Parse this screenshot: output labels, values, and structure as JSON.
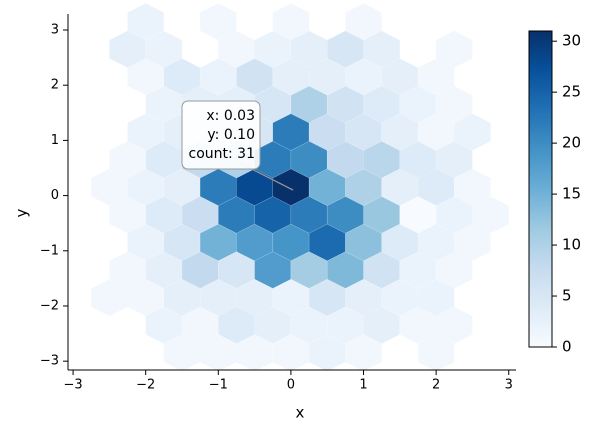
{
  "chart_data": {
    "type": "hexbin",
    "xlabel": "x",
    "ylabel": "y",
    "xlim": [
      -3.07,
      3.1
    ],
    "ylim": [
      -3.16,
      3.29
    ],
    "xticks": [
      {
        "value": -3,
        "label": "−3"
      },
      {
        "value": -2,
        "label": "−2"
      },
      {
        "value": -1,
        "label": "−1"
      },
      0,
      1,
      2,
      3
    ],
    "yticks": [
      {
        "value": -3,
        "label": "−3"
      },
      {
        "value": -2,
        "label": "−2"
      },
      {
        "value": -1,
        "label": "−1"
      },
      0,
      1,
      2,
      3
    ],
    "colormap": [
      "#f7fbff",
      "#deebf7",
      "#c6dbef",
      "#9ecae1",
      "#6baed6",
      "#4292c6",
      "#2171b5",
      "#08519c",
      "#08306b"
    ],
    "clim": [
      0,
      31
    ],
    "cticks": [
      0,
      5,
      10,
      15,
      20,
      25,
      30
    ],
    "hexes": [
      [
        -2,
        3.15,
        2
      ],
      [
        -1,
        3.15,
        1
      ],
      [
        0,
        3.15,
        1
      ],
      [
        1,
        3.15,
        1
      ],
      [
        -2.25,
        2.65,
        3
      ],
      [
        -1.75,
        2.65,
        2
      ],
      [
        -0.75,
        2.65,
        1
      ],
      [
        -0.25,
        2.65,
        2
      ],
      [
        0.25,
        2.65,
        3
      ],
      [
        0.75,
        2.65,
        5
      ],
      [
        1.25,
        2.65,
        3
      ],
      [
        2.25,
        2.65,
        1
      ],
      [
        -2,
        2.15,
        1
      ],
      [
        -1.5,
        2.15,
        4
      ],
      [
        -1,
        2.15,
        2
      ],
      [
        -0.5,
        2.15,
        6
      ],
      [
        0,
        2.15,
        3
      ],
      [
        0.5,
        2.15,
        3
      ],
      [
        1,
        2.15,
        2
      ],
      [
        1.5,
        2.15,
        3
      ],
      [
        2,
        2.15,
        1
      ],
      [
        -1.75,
        1.65,
        2
      ],
      [
        -1.25,
        1.65,
        3
      ],
      [
        -0.75,
        1.65,
        3
      ],
      [
        -0.25,
        1.65,
        5
      ],
      [
        0.25,
        1.65,
        10
      ],
      [
        0.75,
        1.65,
        6
      ],
      [
        1.25,
        1.65,
        4
      ],
      [
        1.75,
        1.65,
        2
      ],
      [
        2.25,
        1.65,
        1
      ],
      [
        -2,
        1.15,
        2
      ],
      [
        -1.5,
        1.15,
        3
      ],
      [
        -1,
        1.15,
        5
      ],
      [
        -0.5,
        1.15,
        5
      ],
      [
        0,
        1.15,
        22
      ],
      [
        0.5,
        1.15,
        7
      ],
      [
        1,
        1.15,
        5
      ],
      [
        1.5,
        1.15,
        3
      ],
      [
        2,
        1.15,
        1
      ],
      [
        2.5,
        1.15,
        2
      ],
      [
        -2.25,
        0.65,
        1
      ],
      [
        -1.75,
        0.65,
        4
      ],
      [
        -1.25,
        0.65,
        8
      ],
      [
        -0.75,
        0.65,
        10
      ],
      [
        -0.25,
        0.65,
        22
      ],
      [
        0.25,
        0.65,
        20
      ],
      [
        0.75,
        0.65,
        8
      ],
      [
        1.25,
        0.65,
        9
      ],
      [
        1.75,
        0.65,
        4
      ],
      [
        2.25,
        0.65,
        3
      ],
      [
        -2.5,
        0.15,
        1
      ],
      [
        -2,
        0.15,
        2
      ],
      [
        -1.5,
        0.15,
        3
      ],
      [
        -1,
        0.15,
        22
      ],
      [
        -0.5,
        0.15,
        28
      ],
      [
        0,
        0.15,
        31
      ],
      [
        0.5,
        0.15,
        15
      ],
      [
        1,
        0.15,
        10
      ],
      [
        1.5,
        0.15,
        3
      ],
      [
        2,
        0.15,
        4
      ],
      [
        2.5,
        0.15,
        1
      ],
      [
        -2.25,
        -0.35,
        1
      ],
      [
        -1.75,
        -0.35,
        4
      ],
      [
        -1.25,
        -0.35,
        7
      ],
      [
        -0.75,
        -0.35,
        22
      ],
      [
        -0.25,
        -0.35,
        25
      ],
      [
        0.25,
        -0.35,
        22
      ],
      [
        0.75,
        -0.35,
        20
      ],
      [
        1.25,
        -0.35,
        12
      ],
      [
        1.75,
        -0.35,
        0
      ],
      [
        2.25,
        -0.35,
        2
      ],
      [
        2.75,
        -0.35,
        1
      ],
      [
        -2,
        -0.85,
        2
      ],
      [
        -1.5,
        -0.85,
        5
      ],
      [
        -1,
        -0.85,
        15
      ],
      [
        -0.5,
        -0.85,
        18
      ],
      [
        0,
        -0.85,
        19
      ],
      [
        0.5,
        -0.85,
        24
      ],
      [
        1,
        -0.85,
        13
      ],
      [
        1.5,
        -0.85,
        4
      ],
      [
        2,
        -0.85,
        2
      ],
      [
        2.5,
        -0.85,
        1
      ],
      [
        -2.25,
        -1.35,
        1
      ],
      [
        -1.75,
        -1.35,
        3
      ],
      [
        -1.25,
        -1.35,
        8
      ],
      [
        -0.75,
        -1.35,
        5
      ],
      [
        -0.25,
        -1.35,
        18
      ],
      [
        0.25,
        -1.35,
        11
      ],
      [
        0.75,
        -1.35,
        14
      ],
      [
        1.25,
        -1.35,
        6
      ],
      [
        1.75,
        -1.35,
        2
      ],
      [
        2.25,
        -1.35,
        1
      ],
      [
        -2.5,
        -1.85,
        1
      ],
      [
        -2,
        -1.85,
        1
      ],
      [
        -1.5,
        -1.85,
        3
      ],
      [
        -1,
        -1.85,
        3
      ],
      [
        -0.5,
        -1.85,
        3
      ],
      [
        0,
        -1.85,
        2
      ],
      [
        0.5,
        -1.85,
        5
      ],
      [
        1,
        -1.85,
        3
      ],
      [
        1.5,
        -1.85,
        2
      ],
      [
        2,
        -1.85,
        2
      ],
      [
        -1.75,
        -2.35,
        2
      ],
      [
        -1.25,
        -2.35,
        1
      ],
      [
        -0.75,
        -2.35,
        4
      ],
      [
        -0.25,
        -2.35,
        3
      ],
      [
        0.25,
        -2.35,
        2
      ],
      [
        0.75,
        -2.35,
        2
      ],
      [
        1.25,
        -2.35,
        3
      ],
      [
        1.75,
        -2.35,
        1
      ],
      [
        2.25,
        -2.35,
        1
      ],
      [
        -1.5,
        -2.85,
        1
      ],
      [
        -1,
        -2.85,
        1
      ],
      [
        -0.5,
        -2.85,
        1
      ],
      [
        0,
        -2.85,
        1
      ],
      [
        0.5,
        -2.85,
        2
      ],
      [
        1,
        -2.85,
        1
      ],
      [
        2,
        -2.85,
        1
      ]
    ],
    "tooltip": {
      "lines": [
        "x: 0.03",
        "y: 0.10",
        "count: 31"
      ],
      "point": [
        0.03,
        0.1
      ]
    }
  }
}
